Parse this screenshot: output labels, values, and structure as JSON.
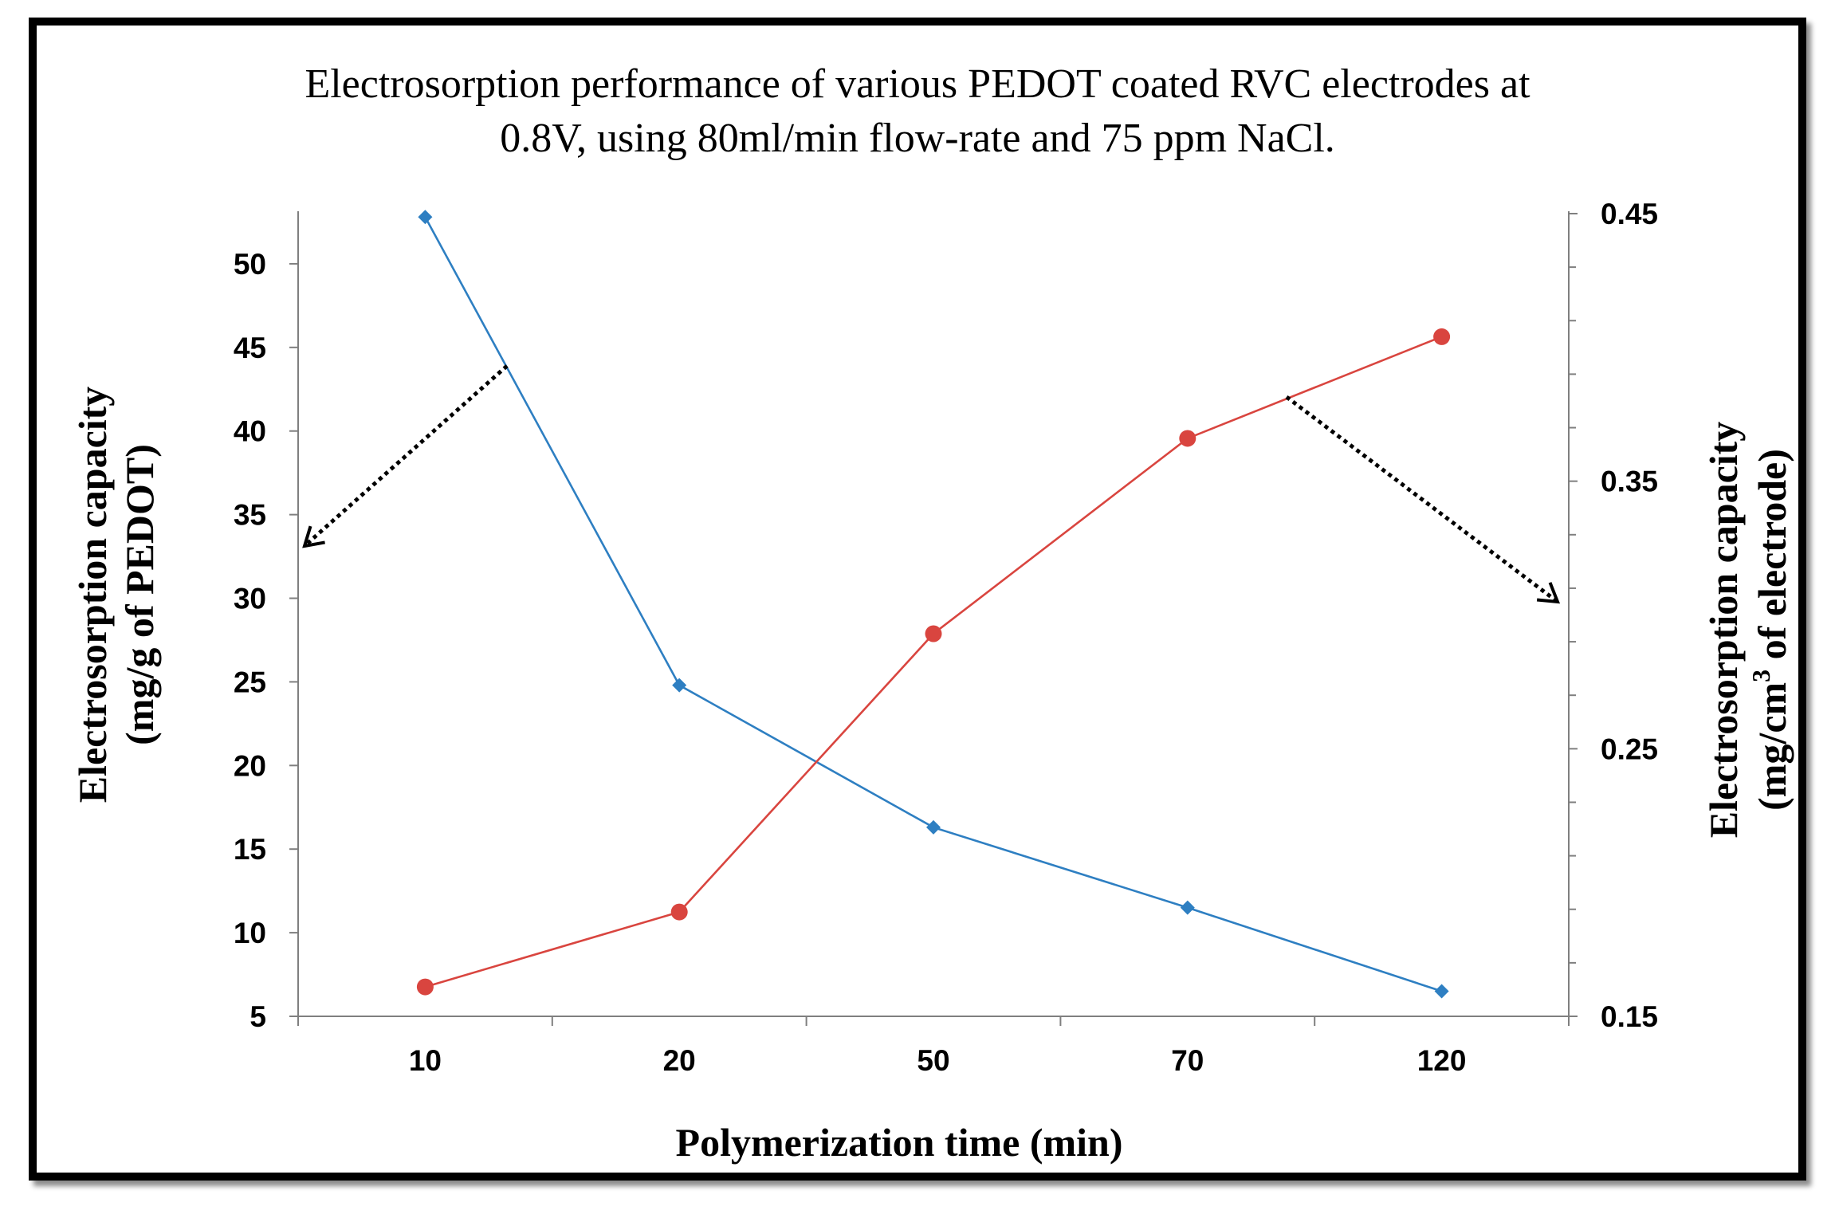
{
  "chart_data": {
    "type": "line",
    "title_lines": [
      "Electrosorption performance of various PEDOT coated RVC electrodes at",
      "0.8V, using 80ml/min flow-rate and 75 ppm NaCl."
    ],
    "categories": [
      "10",
      "20",
      "50",
      "70",
      "120"
    ],
    "xlabel": "Polymerization time (min)",
    "ylabel_left": [
      "Electrosorption capacity",
      "(mg/g of PEDOT)"
    ],
    "ylabel_right_line1": "Electrosorption capacity",
    "ylabel_right_line2": {
      "pre": "(mg/cm",
      "sup": "3",
      "post": " of electrode)"
    },
    "y_left": {
      "min": 5,
      "max": 53,
      "ticks": [
        "5",
        "10",
        "15",
        "20",
        "25",
        "30",
        "35",
        "40",
        "45",
        "50"
      ]
    },
    "y_right": {
      "min": 0.15,
      "max": 0.45,
      "ticks": [
        "0.15",
        "0.25",
        "0.35",
        "0.45"
      ]
    },
    "series": [
      {
        "name": "mg/g of PEDOT",
        "axis": "left",
        "color": "#2e7fc2",
        "marker": "diamond",
        "values": [
          52.8,
          24.8,
          16.3,
          11.5,
          6.5
        ]
      },
      {
        "name": "mg/cm3 of electrode",
        "axis": "right",
        "color": "#d9453f",
        "marker": "circle",
        "values": [
          0.161,
          0.189,
          0.293,
          0.366,
          0.404
        ]
      }
    ]
  }
}
